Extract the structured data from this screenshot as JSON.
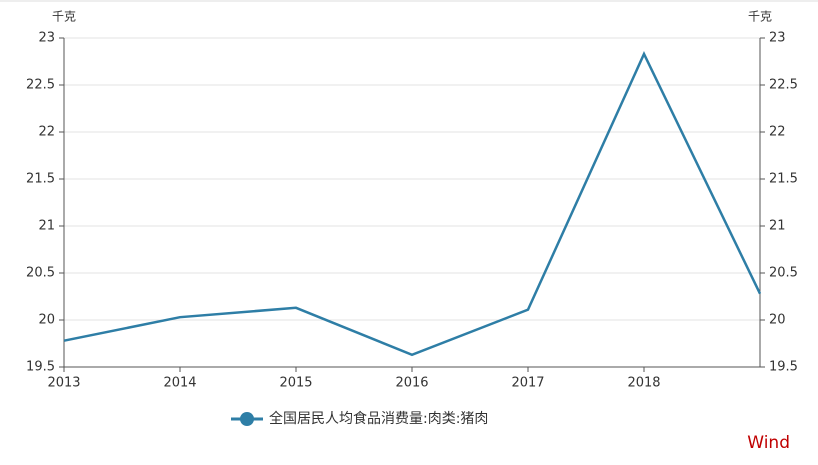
{
  "chart_data": {
    "type": "line",
    "x": [
      2013,
      2014,
      2015,
      2016,
      2017,
      2018,
      2019
    ],
    "series": [
      {
        "name": "全国居民人均食品消费量:肉类:猪肉",
        "color": "#2e7ea6",
        "values": [
          19.78,
          20.03,
          20.13,
          19.63,
          20.11,
          22.83,
          20.28
        ]
      }
    ],
    "xlim": [
      2013,
      2019
    ],
    "xticks": [
      2013,
      2014,
      2015,
      2016,
      2017,
      2018
    ],
    "ylim": [
      19.5,
      23
    ],
    "yticks": [
      19.5,
      20,
      20.5,
      21,
      21.5,
      22,
      22.5,
      23
    ],
    "y2lim": [
      19.5,
      23
    ],
    "y2ticks": [
      19.5,
      20,
      20.5,
      21,
      21.5,
      22,
      22.5,
      23
    ],
    "y_unit": "千克",
    "y2_unit": "千克",
    "grid": true,
    "watermark": "Wind"
  }
}
